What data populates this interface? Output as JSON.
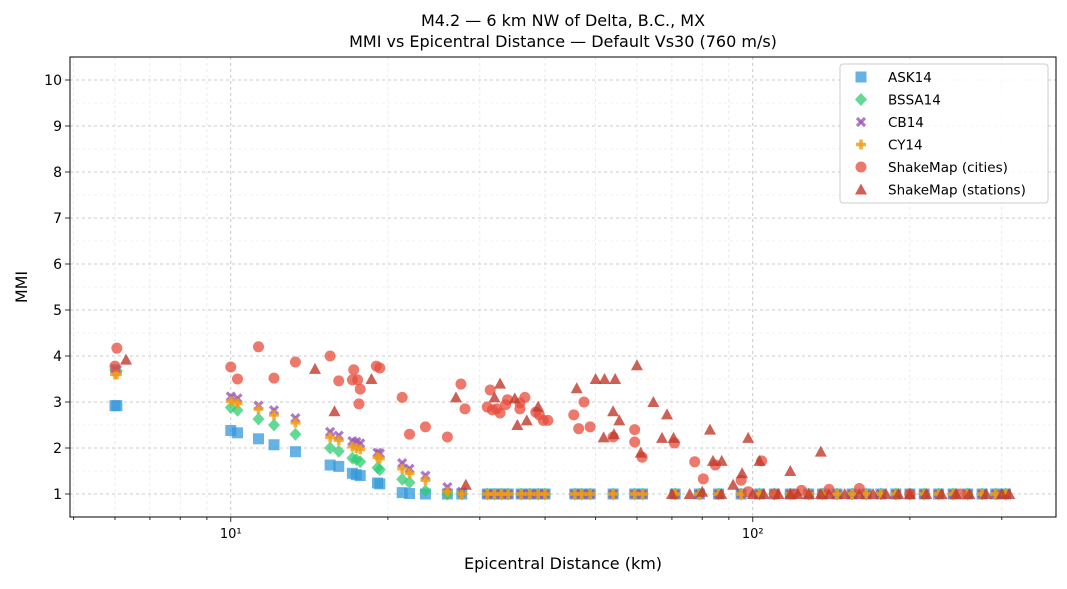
{
  "chart_data": {
    "type": "scatter",
    "title": "M4.2 — 6 km NW of Delta, B.C., MX",
    "subtitle": "MMI vs Epicentral Distance — Default Vs30 (760 m/s)",
    "xlabel": "Epicentral Distance (km)",
    "ylabel": "MMI",
    "xscale": "log",
    "xlim": [
      4.92,
      381
    ],
    "ylim": [
      0.5,
      10.5
    ],
    "x_tick_labels": [
      "10¹",
      "10²"
    ],
    "x_ticks": [
      10,
      100
    ],
    "y_ticks": [
      1,
      2,
      3,
      4,
      5,
      6,
      7,
      8,
      9,
      10
    ],
    "y_tick_labels": [
      "1",
      "2",
      "3",
      "4",
      "5",
      "6",
      "7",
      "8",
      "9",
      "10"
    ],
    "grid": true,
    "legend_placement": "top-right",
    "model_distance_km": [
      6.0,
      6.05,
      10,
      10.3,
      11.3,
      12.1,
      13.3,
      15.5,
      16.1,
      17.1,
      17.4,
      17.7,
      19.1,
      19.3,
      21.3,
      22,
      23.6,
      26,
      27.7,
      31,
      32,
      33,
      34,
      36,
      37.4,
      38.8,
      40,
      45.6,
      47,
      48.8,
      54,
      59.4,
      61.5,
      71,
      79,
      86,
      95,
      103,
      110,
      118,
      128,
      136,
      145,
      155,
      165,
      176,
      188,
      200,
      213,
      227,
      242,
      258,
      275,
      292,
      305
    ],
    "series": [
      {
        "name": "ASK14",
        "marker": "square",
        "color": "#3498db",
        "values": [
          2.92,
          2.92,
          2.38,
          2.33,
          2.2,
          2.07,
          1.92,
          1.63,
          1.6,
          1.45,
          1.42,
          1.4,
          1.24,
          1.22,
          1.03,
          1.01,
          1,
          1,
          1,
          1,
          1,
          1,
          1,
          1,
          1,
          1,
          1,
          1,
          1,
          1,
          1,
          1,
          1,
          1,
          1,
          1,
          1,
          1,
          1,
          1,
          1,
          1,
          1,
          1,
          1,
          1,
          1,
          1,
          1,
          1,
          1,
          1,
          1,
          1,
          1
        ]
      },
      {
        "name": "BSSA14",
        "marker": "diamond",
        "color": "#2ecc71",
        "values": [
          3.7,
          3.68,
          2.88,
          2.82,
          2.63,
          2.5,
          2.3,
          2.0,
          1.93,
          1.78,
          1.75,
          1.7,
          1.57,
          1.53,
          1.32,
          1.25,
          1.07,
          1,
          1,
          1,
          1,
          1,
          1,
          1,
          1,
          1,
          1,
          1,
          1,
          1,
          1,
          1,
          1,
          1,
          1,
          1,
          1,
          1,
          1,
          1,
          1,
          1,
          1,
          1,
          1,
          1,
          1,
          1,
          1,
          1,
          1,
          1,
          1,
          1,
          1
        ]
      },
      {
        "name": "CB14",
        "marker": "x",
        "color": "#9b59b6",
        "values": [
          3.72,
          3.7,
          3.12,
          3.08,
          2.92,
          2.82,
          2.65,
          2.35,
          2.27,
          2.15,
          2.13,
          2.1,
          1.9,
          1.88,
          1.67,
          1.55,
          1.4,
          1.15,
          1.05,
          1,
          1,
          1,
          1,
          1,
          1,
          1,
          1,
          1,
          1,
          1,
          1,
          1,
          1,
          1,
          1,
          1,
          1,
          1,
          1,
          1,
          1,
          1,
          1,
          1,
          1,
          1,
          1,
          1,
          1,
          1,
          1,
          1,
          1,
          1,
          1
        ]
      },
      {
        "name": "CY14",
        "marker": "plus",
        "color": "#f39c12",
        "values": [
          3.6,
          3.6,
          3.02,
          2.97,
          2.85,
          2.72,
          2.55,
          2.23,
          2.17,
          2.03,
          2.0,
          1.97,
          1.8,
          1.77,
          1.55,
          1.45,
          1.3,
          1.05,
          1.0,
          1,
          1,
          1,
          1,
          1,
          1,
          1,
          1,
          1,
          1,
          1,
          1,
          1,
          1,
          1,
          1,
          1,
          1,
          1,
          1,
          1,
          1,
          1,
          1,
          1,
          1,
          1,
          1,
          1,
          1,
          1,
          1,
          1,
          1,
          1,
          1
        ]
      },
      {
        "name": "ShakeMap (cities)",
        "marker": "circle",
        "color": "#e74c3c",
        "points": [
          [
            6.0,
            3.78
          ],
          [
            6.05,
            4.17
          ],
          [
            10,
            3.76
          ],
          [
            10.3,
            3.5
          ],
          [
            11.3,
            4.2
          ],
          [
            12.1,
            3.52
          ],
          [
            13.3,
            3.87
          ],
          [
            15.5,
            4.0
          ],
          [
            16.1,
            3.46
          ],
          [
            17.1,
            3.48
          ],
          [
            17.2,
            3.7
          ],
          [
            17.5,
            3.48
          ],
          [
            17.7,
            3.28
          ],
          [
            17.6,
            2.96
          ],
          [
            19.0,
            3.78
          ],
          [
            19.3,
            3.74
          ],
          [
            21.3,
            3.1
          ],
          [
            22,
            2.3
          ],
          [
            23.6,
            2.46
          ],
          [
            26,
            2.24
          ],
          [
            27.6,
            3.39
          ],
          [
            28.1,
            2.85
          ],
          [
            31,
            2.89
          ],
          [
            31.4,
            3.26
          ],
          [
            31.7,
            2.83
          ],
          [
            32.3,
            2.85
          ],
          [
            32.8,
            2.76
          ],
          [
            33.6,
            2.94
          ],
          [
            33.9,
            3.05
          ],
          [
            35.8,
            2.85
          ],
          [
            35.8,
            2.98
          ],
          [
            36.6,
            3.1
          ],
          [
            38.4,
            2.78
          ],
          [
            39,
            2.72
          ],
          [
            39.7,
            2.6
          ],
          [
            40.5,
            2.6
          ],
          [
            45.4,
            2.72
          ],
          [
            46.4,
            2.42
          ],
          [
            47.5,
            3.0
          ],
          [
            48.8,
            2.46
          ],
          [
            54,
            2.24
          ],
          [
            59.4,
            2.4
          ],
          [
            59.4,
            2.13
          ],
          [
            61.4,
            1.8
          ],
          [
            70.8,
            2.11
          ],
          [
            77.4,
            1.7
          ],
          [
            80.4,
            1.33
          ],
          [
            84.8,
            1.63
          ],
          [
            95,
            1.3
          ],
          [
            98,
            1.05
          ],
          [
            104,
            1.72
          ],
          [
            110,
            1.0
          ],
          [
            120,
            1.0
          ],
          [
            124,
            1.08
          ],
          [
            140,
            1.1
          ],
          [
            160,
            1.12
          ],
          [
            200,
            1.0
          ],
          [
            250,
            1.0
          ]
        ]
      },
      {
        "name": "ShakeMap (stations)",
        "marker": "triangle",
        "color": "#c0392b",
        "points": [
          [
            6.3,
            3.92
          ],
          [
            14.5,
            3.72
          ],
          [
            15.8,
            2.8
          ],
          [
            18.6,
            3.5
          ],
          [
            27,
            3.1
          ],
          [
            28.2,
            1.2
          ],
          [
            32,
            3.1
          ],
          [
            32.8,
            3.4
          ],
          [
            35,
            3.08
          ],
          [
            35.4,
            2.5
          ],
          [
            36.9,
            2.6
          ],
          [
            38.8,
            2.9
          ],
          [
            46,
            3.3
          ],
          [
            50,
            3.5
          ],
          [
            52,
            3.5
          ],
          [
            54.5,
            3.5
          ],
          [
            51.8,
            2.23
          ],
          [
            54,
            2.8
          ],
          [
            54.2,
            2.3
          ],
          [
            55.5,
            2.6
          ],
          [
            60,
            3.8
          ],
          [
            61,
            1.9
          ],
          [
            64.5,
            3.0
          ],
          [
            67,
            2.22
          ],
          [
            68.5,
            2.73
          ],
          [
            70.5,
            2.22
          ],
          [
            70,
            1.0
          ],
          [
            75.7,
            1.0
          ],
          [
            80,
            1.05
          ],
          [
            82.8,
            2.4
          ],
          [
            83.9,
            1.72
          ],
          [
            87.2,
            1.72
          ],
          [
            87,
            1.0
          ],
          [
            91.7,
            1.2
          ],
          [
            95.4,
            1.45
          ],
          [
            98,
            2.22
          ],
          [
            100,
            1.0
          ],
          [
            103,
            1.72
          ],
          [
            105,
            1.0
          ],
          [
            112,
            1.0
          ],
          [
            118,
            1.5
          ],
          [
            118,
            1.0
          ],
          [
            122,
            1.0
          ],
          [
            128,
            1.0
          ],
          [
            135,
            1.92
          ],
          [
            135,
            1.0
          ],
          [
            140,
            1.0
          ],
          [
            150,
            1.0
          ],
          [
            160,
            1.0
          ],
          [
            170,
            1.0
          ],
          [
            180,
            1.0
          ],
          [
            190,
            1.0
          ],
          [
            200,
            1.0
          ],
          [
            215,
            1.0
          ],
          [
            230,
            1.0
          ],
          [
            245,
            1.0
          ],
          [
            260,
            1.0
          ],
          [
            280,
            1.0
          ],
          [
            300,
            1.0
          ],
          [
            310,
            1.0
          ]
        ]
      }
    ]
  }
}
